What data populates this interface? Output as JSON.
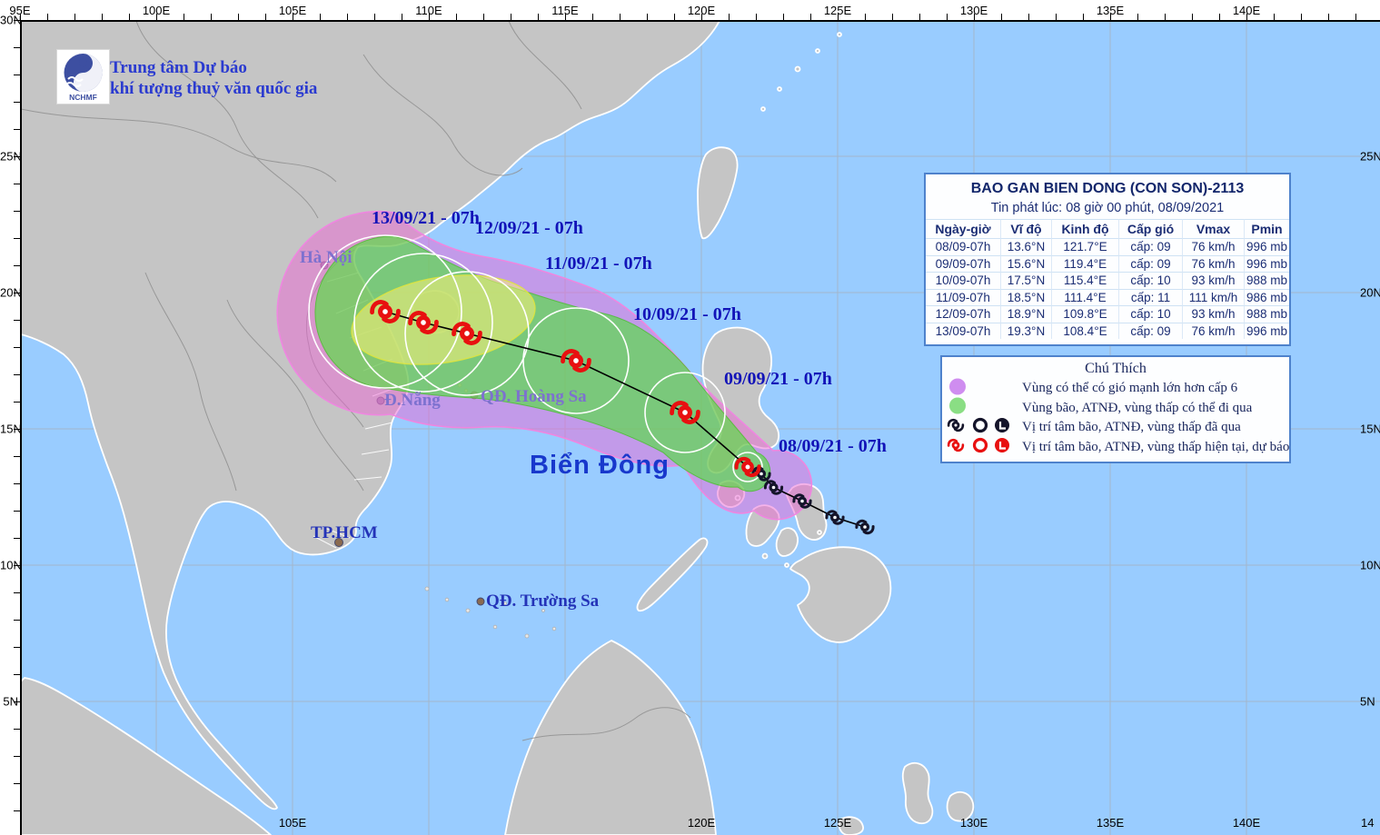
{
  "branding": {
    "line1": "Trung tâm Dự báo",
    "line2": "khí tượng thuỷ văn quốc gia",
    "logo_text": "NCHMF"
  },
  "info_box": {
    "title": "BAO GAN BIEN DONG (CON SON)-2113",
    "issued": "Tin phát lúc: 08 giờ 00 phút, 08/09/2021",
    "headers": [
      "Ngày-giờ",
      "Vĩ độ",
      "Kinh độ",
      "Cấp gió",
      "Vmax",
      "Pmin"
    ],
    "rows": [
      [
        "08/09-07h",
        "13.6°N",
        "121.7°E",
        "cấp: 09",
        "76 km/h",
        "996 mb"
      ],
      [
        "09/09-07h",
        "15.6°N",
        "119.4°E",
        "cấp: 09",
        "76 km/h",
        "996 mb"
      ],
      [
        "10/09-07h",
        "17.5°N",
        "115.4°E",
        "cấp: 10",
        "93 km/h",
        "988 mb"
      ],
      [
        "11/09-07h",
        "18.5°N",
        "111.4°E",
        "cấp: 11",
        "111 km/h",
        "986 mb"
      ],
      [
        "12/09-07h",
        "18.9°N",
        "109.8°E",
        "cấp: 10",
        "93 km/h",
        "988 mb"
      ],
      [
        "13/09-07h",
        "19.3°N",
        "108.4°E",
        "cấp: 09",
        "76 km/h",
        "996 mb"
      ]
    ]
  },
  "legend": {
    "title": "Chú Thích",
    "items": [
      {
        "symbol": "purple-area",
        "label": "Vùng có thể có gió mạnh lớn hơn cấp 6"
      },
      {
        "symbol": "green-area",
        "label": "Vùng bão, ATNĐ, vùng thấp có thể đi qua"
      },
      {
        "symbol": "past-markers",
        "label": "Vị trí tâm bão, ATNĐ, vùng thấp đã qua"
      },
      {
        "symbol": "current-forecast-markers",
        "label": "Vị trí tâm bão, ATNĐ, vùng thấp hiện tại, dự báo"
      }
    ]
  },
  "map_labels": {
    "dates": [
      "13/09/21 - 07h",
      "12/09/21 - 07h",
      "11/09/21 - 07h",
      "10/09/21 - 07h",
      "09/09/21 - 07h",
      "08/09/21 - 07h"
    ],
    "places": {
      "hanoi": "Hà Nội",
      "danang": "Đ.Nẵng",
      "hoangsa": "QĐ. Hoàng Sa",
      "tphcm": "TP.HCM",
      "truongsa": "QĐ. Trường Sa",
      "sea": "Biển Đông"
    }
  },
  "axes": {
    "top": [
      "95E",
      "100E",
      "105E",
      "110E",
      "115E",
      "120E",
      "125E",
      "130E",
      "135E",
      "140E"
    ],
    "bottom": [
      "105E",
      "120E",
      "125E",
      "130E",
      "135E",
      "140E",
      "14"
    ],
    "left": [
      "30N",
      "25N",
      "20N",
      "15N",
      "10N",
      "5N"
    ],
    "right": [
      "25N",
      "20N",
      "15N",
      "10N",
      "5N"
    ]
  },
  "storm": {
    "name": "CON SON",
    "number": "2113",
    "past": [
      {
        "lon": 126.0,
        "lat": 11.4
      },
      {
        "lon": 124.9,
        "lat": 11.75
      },
      {
        "lon": 123.7,
        "lat": 12.35
      },
      {
        "lon": 122.65,
        "lat": 12.85
      },
      {
        "lon": 122.2,
        "lat": 13.35
      }
    ],
    "current": {
      "lon": 121.7,
      "lat": 13.6,
      "r": 16
    },
    "forecast": [
      {
        "lon": 119.4,
        "lat": 15.6,
        "r": 44
      },
      {
        "lon": 115.4,
        "lat": 17.5,
        "r": 58
      },
      {
        "lon": 111.4,
        "lat": 18.5,
        "r": 68
      },
      {
        "lon": 109.8,
        "lat": 18.9,
        "r": 76
      },
      {
        "lon": 108.4,
        "lat": 19.3,
        "r": 84
      }
    ]
  },
  "colors": {
    "sea": "#99ccff",
    "land": "#c5c5c5",
    "wind_area_purple": "#cf8df0",
    "passage_area_green": "#8ade84",
    "current_marker_red": "#e81010",
    "past_marker_black": "#14142a",
    "label_blue": "#1213b8"
  }
}
